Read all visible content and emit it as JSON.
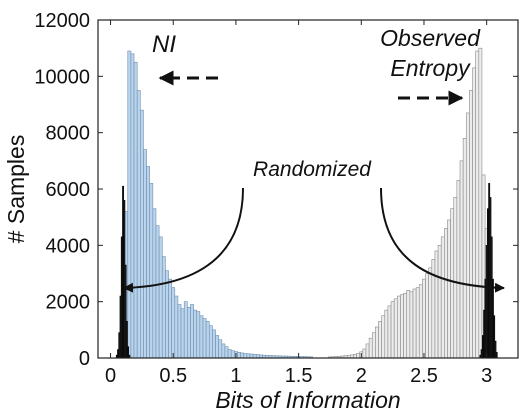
{
  "chart_data": {
    "type": "bar",
    "xlabel": "Bits of Information",
    "ylabel": "# Samples",
    "xlim": [
      -0.1,
      3.25
    ],
    "ylim": [
      0,
      12000
    ],
    "xticks": [
      "0",
      "0.5",
      "1",
      "1.5",
      "2",
      "2.5",
      "3"
    ],
    "yticks": [
      "0",
      "2000",
      "4000",
      "6000",
      "8000",
      "10000",
      "12000"
    ],
    "grid": false,
    "annotations": {
      "ni": "NI",
      "observed_line1": "Observed",
      "observed_line2": "Entropy",
      "randomized": "Randomized"
    },
    "colors": {
      "ni_fill": "#b9d4ec",
      "ni_edge": "#6f8fae",
      "observed_fill": "#ececec",
      "observed_edge": "#8a8a8a",
      "randomized_fill": "#222222"
    },
    "bin_width": 0.025,
    "series": [
      {
        "x": [
          0.1,
          0.125,
          0.15,
          0.175,
          0.2,
          0.225,
          0.25,
          0.275,
          0.3,
          0.325,
          0.35,
          0.375,
          0.4,
          0.425,
          0.45,
          0.475,
          0.5,
          0.525,
          0.55,
          0.575,
          0.6,
          0.625,
          0.65,
          0.675,
          0.7,
          0.725,
          0.75,
          0.775,
          0.8,
          0.825,
          0.85,
          0.875,
          0.9,
          0.925,
          0.95,
          0.975,
          1.0,
          1.025,
          1.05,
          1.075,
          1.1,
          1.125,
          1.15,
          1.175,
          1.2,
          1.225,
          1.25,
          1.275,
          1.3,
          1.325,
          1.35,
          1.375,
          1.4,
          1.425,
          1.45,
          1.475,
          1.5,
          1.525,
          1.55,
          1.575,
          1.6
        ],
        "values": [
          900,
          5200,
          10900,
          10800,
          10500,
          9500,
          8800,
          7400,
          6800,
          6200,
          5300,
          4700,
          4300,
          3600,
          3100,
          2800,
          2500,
          2200,
          1900,
          1750,
          2000,
          1800,
          1900,
          1700,
          1650,
          1500,
          1400,
          1300,
          1150,
          1000,
          800,
          650,
          500,
          400,
          300,
          260,
          230,
          200,
          180,
          160,
          150,
          140,
          130,
          120,
          110,
          100,
          95,
          90,
          85,
          80,
          75,
          70,
          70,
          65,
          60,
          60,
          55,
          50,
          50,
          45,
          40
        ]
      },
      {
        "x": [
          1.75,
          1.775,
          1.8,
          1.825,
          1.85,
          1.875,
          1.9,
          1.925,
          1.95,
          1.975,
          2.0,
          2.025,
          2.05,
          2.075,
          2.1,
          2.125,
          2.15,
          2.175,
          2.2,
          2.225,
          2.25,
          2.275,
          2.3,
          2.325,
          2.35,
          2.375,
          2.4,
          2.425,
          2.45,
          2.475,
          2.5,
          2.525,
          2.55,
          2.575,
          2.6,
          2.625,
          2.65,
          2.675,
          2.7,
          2.725,
          2.75,
          2.775,
          2.8,
          2.825,
          2.85,
          2.875,
          2.9,
          2.925,
          2.95,
          2.975,
          3.0,
          3.025,
          3.05
        ],
        "values": [
          40,
          45,
          55,
          60,
          70,
          80,
          90,
          110,
          130,
          160,
          220,
          320,
          500,
          700,
          900,
          1100,
          1300,
          1500,
          1700,
          1850,
          2000,
          2100,
          2200,
          2250,
          2300,
          2400,
          2350,
          2450,
          2500,
          2600,
          2800,
          3000,
          3200,
          3500,
          3800,
          4000,
          4300,
          4600,
          4900,
          5300,
          5700,
          6300,
          7000,
          7800,
          8700,
          9500,
          10300,
          10900,
          11000,
          6500,
          4600,
          3200,
          1500
        ]
      },
      {
        "x": [
          0.05,
          0.06,
          0.07,
          0.08,
          0.09,
          0.1,
          0.11,
          0.12,
          0.13,
          0.14,
          0.15
        ],
        "values": [
          100,
          300,
          900,
          2200,
          4300,
          6100,
          5600,
          3300,
          1300,
          400,
          100
        ]
      },
      {
        "x": [
          2.95,
          2.96,
          2.97,
          2.98,
          2.99,
          3.0,
          3.01,
          3.02,
          3.03,
          3.04,
          3.05,
          3.06,
          3.07,
          3.08
        ],
        "values": [
          100,
          300,
          800,
          1700,
          2800,
          4000,
          5300,
          6200,
          5700,
          4300,
          2800,
          1500,
          600,
          200
        ]
      }
    ]
  }
}
